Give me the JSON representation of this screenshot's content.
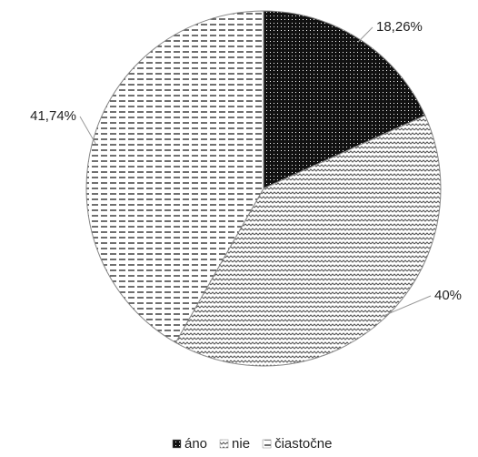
{
  "chart_data": {
    "type": "pie",
    "categories": [
      "áno",
      "nie",
      "čiastočne"
    ],
    "values": [
      18.26,
      40,
      41.74
    ],
    "value_labels": [
      "18,26%",
      "40%",
      "41,74%"
    ]
  }
}
